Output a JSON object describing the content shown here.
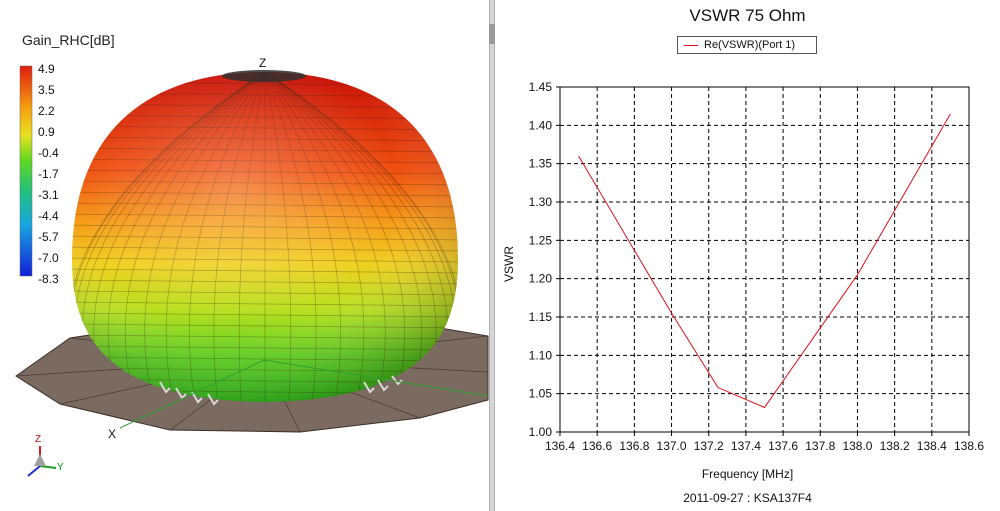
{
  "left_panel": {
    "colorbar_title": "Gain_RHC[dB]",
    "colorbar_labels": [
      "4.9",
      "3.5",
      "2.2",
      "0.9",
      "-0.4",
      "-1.7",
      "-3.1",
      "-4.4",
      "-5.7",
      "-7.0",
      "-8.3"
    ],
    "colorbar_colors": [
      "#e01c10",
      "#f04a10",
      "#f58a10",
      "#e8c81a",
      "#a8e01a",
      "#30d020",
      "#20c070",
      "#18b8c8",
      "#1a78e0",
      "#1a40e8",
      "#1020d8"
    ],
    "axis_z_label": "Z",
    "axis_x_label": "X",
    "triad_z": "Z",
    "triad_y": "Y"
  },
  "chart_data": {
    "type": "line",
    "title": "VSWR 75 Ohm",
    "legend": [
      "Re(VSWR)(Port 1)"
    ],
    "xlabel": "Frequency [MHz]",
    "ylabel": "VSWR",
    "footer": "2011-09-27 : KSA137F4",
    "xlim": [
      136.4,
      138.6
    ],
    "ylim": [
      1.0,
      1.45
    ],
    "xticks": [
      "136.4",
      "136.6",
      "136.8",
      "137.0",
      "137.2",
      "137.4",
      "137.6",
      "137.8",
      "138.0",
      "138.2",
      "138.4",
      "138.6"
    ],
    "yticks": [
      "1.00",
      "1.05",
      "1.10",
      "1.15",
      "1.20",
      "1.25",
      "1.30",
      "1.35",
      "1.40",
      "1.45"
    ],
    "grid": true,
    "series": [
      {
        "name": "Re(VSWR)(Port 1)",
        "color": "#e0101a",
        "x": [
          136.5,
          137.0,
          137.25,
          137.5,
          138.0,
          138.5
        ],
        "y": [
          1.36,
          1.155,
          1.058,
          1.032,
          1.205,
          1.415
        ]
      }
    ]
  }
}
